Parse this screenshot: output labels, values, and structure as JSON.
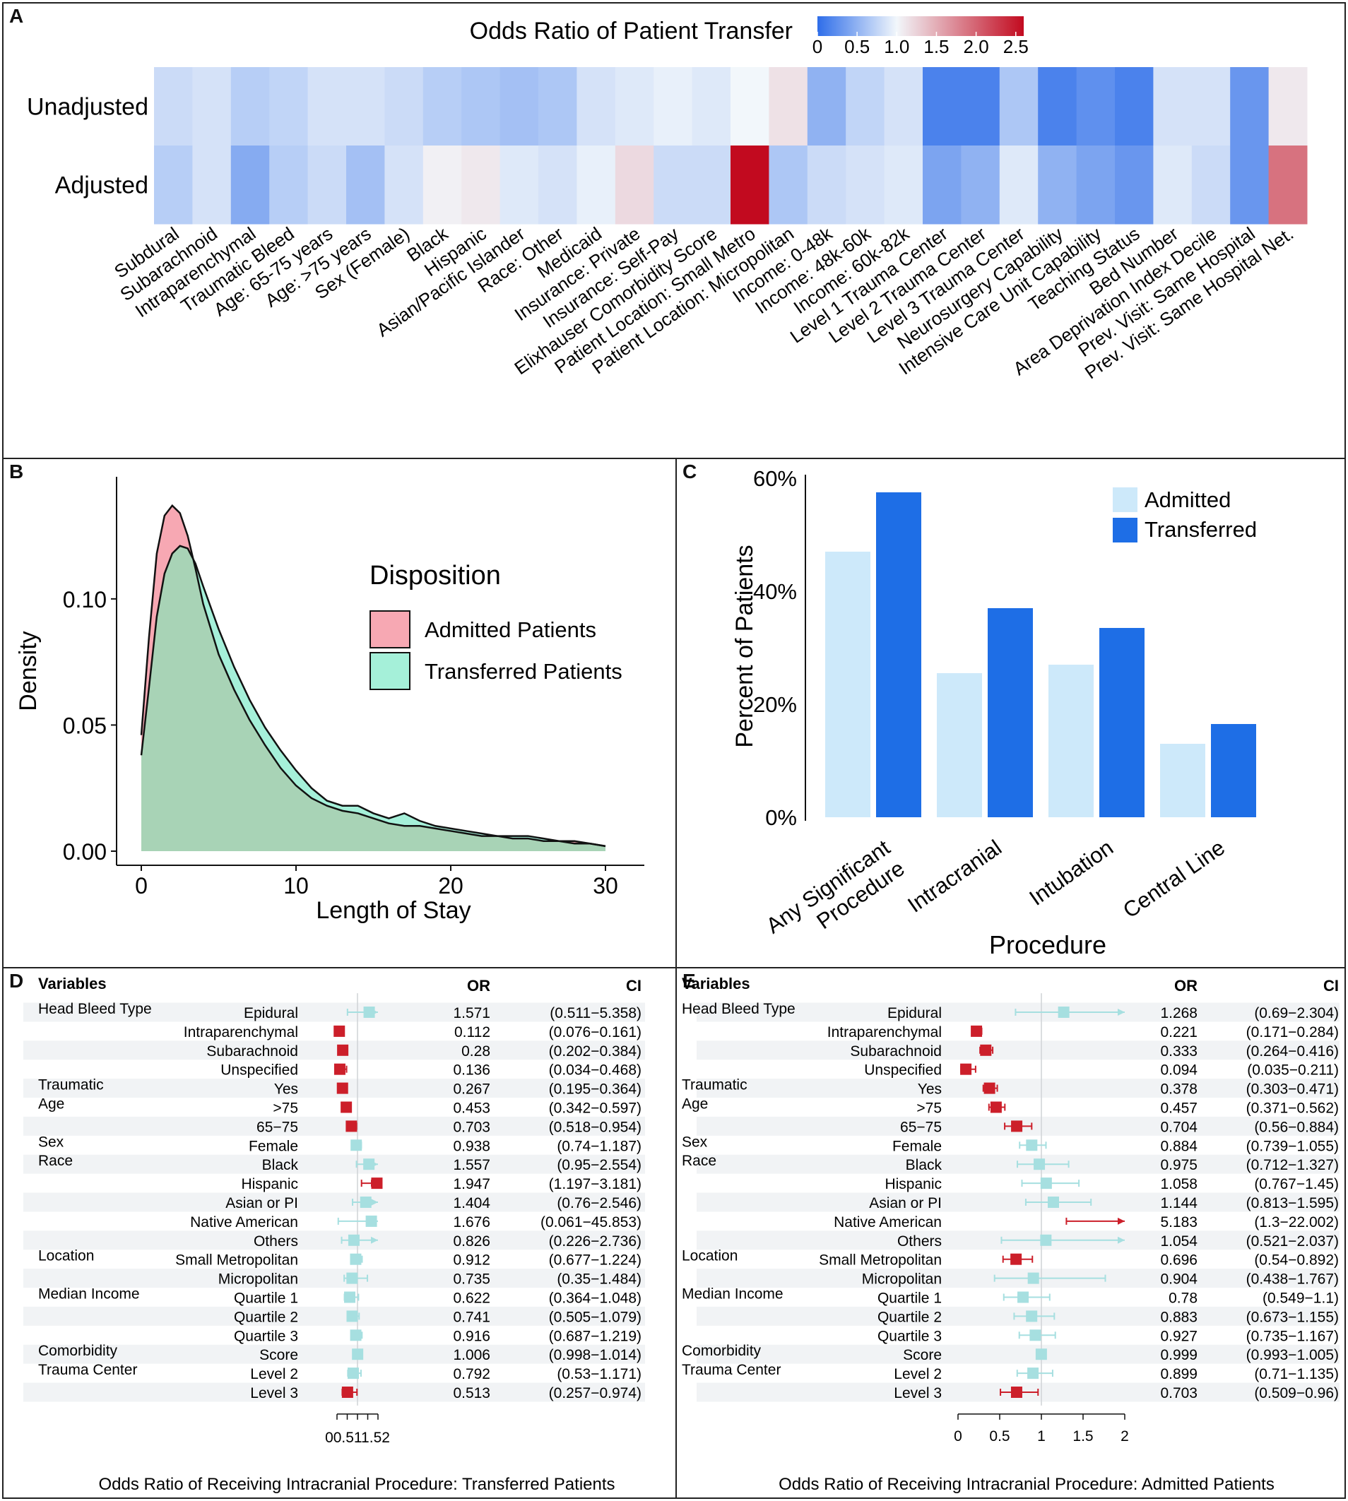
{
  "panels": {
    "a": "A",
    "b": "B",
    "c": "C",
    "d": "D",
    "e": "E"
  },
  "colors": {
    "heat_low": "#2e6de9",
    "heat_mid": "#f2f7fb",
    "heat_high": "#c20a1f",
    "admitted_density": "#f7a8b3",
    "transferred_density": "#a5f0d9",
    "overlap_density": "#a8d3b6",
    "bar_admitted": "#cde9fa",
    "bar_transferred": "#1e6ee6",
    "forest_sig": "#cc1f2a",
    "forest_ns": "#a6dfe0"
  },
  "chart_data": [
    {
      "type": "heatmap",
      "title": "Odds Ratio of Patient Transfer",
      "colorbar_ticks": [
        "0",
        "0.5",
        "1.0",
        "1.5",
        "2.0",
        "2.5"
      ],
      "colorbar_range": [
        0,
        2.6
      ],
      "rows": [
        "Unadjusted",
        "Adjusted"
      ],
      "columns": [
        "Subdural",
        "Subarachnoid",
        "Intraparenchymal",
        "Traumatic Bleed",
        "Age: 65-75 years",
        "Age: >75 years",
        "Sex (Female)",
        "Black",
        "Hispanic",
        "Asian/Pacific Islander",
        "Race: Other",
        "Medicaid",
        "Insurance: Private",
        "Insurance: Self-Pay",
        "Elixhauser Comorbidity Score",
        "Patient Location: Small Metro",
        "Patient Location: Micropolitan",
        "Income: 0-48k",
        "Income: 48k-60k",
        "Income: 60k-82k",
        "Level 1 Trauma Center",
        "Level 2 Trauma Center",
        "Level 3 Trauma Center",
        "Neurosurgery Capability",
        "Intensive Care Unit Capability",
        "Teaching Status",
        "Bed Number",
        "Area Deprivation Index Decile",
        "Prev. Visit: Same Hospital",
        "Prev. Visit: Same Hospital Net."
      ],
      "values": [
        [
          0.8,
          0.85,
          0.7,
          0.75,
          0.85,
          0.85,
          0.8,
          0.7,
          0.65,
          0.6,
          0.65,
          0.85,
          0.9,
          0.95,
          0.9,
          1.0,
          1.15,
          0.5,
          0.75,
          0.85,
          0.15,
          0.15,
          0.65,
          0.15,
          0.25,
          0.15,
          0.85,
          0.85,
          0.3,
          1.1
        ],
        [
          0.7,
          0.85,
          0.45,
          0.7,
          0.8,
          0.6,
          0.85,
          1.05,
          1.1,
          0.9,
          0.85,
          0.95,
          1.2,
          0.8,
          0.8,
          2.6,
          0.65,
          0.8,
          0.85,
          0.9,
          0.4,
          0.5,
          0.9,
          0.5,
          0.4,
          0.3,
          0.9,
          0.8,
          0.3,
          1.9
        ]
      ]
    },
    {
      "type": "area",
      "xlabel": "Length of Stay",
      "ylabel": "Density",
      "xlim": [
        0,
        30
      ],
      "ylim": [
        0,
        0.14
      ],
      "xticks": [
        "0",
        "10",
        "20",
        "30"
      ],
      "yticks": [
        "0.00",
        "0.05",
        "0.10"
      ],
      "legend_title": "Disposition",
      "legend_position": "top-right",
      "series": [
        {
          "name": "Admitted Patients",
          "x": [
            0,
            0.5,
            1,
            1.5,
            2,
            2.5,
            3,
            3.5,
            4,
            5,
            6,
            7,
            8,
            9,
            10,
            11,
            12,
            13,
            14,
            15,
            16,
            17,
            18,
            19,
            20,
            21,
            22,
            23,
            24,
            25,
            26,
            27,
            28,
            29,
            30
          ],
          "y": [
            0.046,
            0.085,
            0.118,
            0.133,
            0.137,
            0.134,
            0.125,
            0.112,
            0.098,
            0.078,
            0.064,
            0.052,
            0.042,
            0.033,
            0.026,
            0.021,
            0.018,
            0.016,
            0.015,
            0.013,
            0.011,
            0.01,
            0.01,
            0.009,
            0.008,
            0.007,
            0.006,
            0.006,
            0.005,
            0.005,
            0.004,
            0.004,
            0.004,
            0.003,
            0.002
          ]
        },
        {
          "name": "Transferred Patients",
          "x": [
            0,
            0.5,
            1,
            1.5,
            2,
            2.5,
            3,
            3.5,
            4,
            5,
            6,
            7,
            8,
            9,
            10,
            11,
            12,
            13,
            14,
            15,
            16,
            17,
            18,
            19,
            20,
            21,
            22,
            23,
            24,
            25,
            26,
            27,
            28,
            29,
            30
          ],
          "y": [
            0.038,
            0.065,
            0.093,
            0.11,
            0.118,
            0.121,
            0.12,
            0.114,
            0.105,
            0.088,
            0.073,
            0.06,
            0.049,
            0.04,
            0.032,
            0.025,
            0.02,
            0.018,
            0.018,
            0.015,
            0.013,
            0.015,
            0.012,
            0.01,
            0.009,
            0.008,
            0.007,
            0.006,
            0.006,
            0.006,
            0.005,
            0.004,
            0.003,
            0.003,
            0.002
          ]
        }
      ]
    },
    {
      "type": "bar",
      "xlabel": "Procedure",
      "ylabel": "Percent of  Patients",
      "ylim": [
        0,
        60
      ],
      "yticks": [
        "0%",
        "20%",
        "40%",
        "60%"
      ],
      "categories": [
        "Any Significant\nProcedure",
        "Intracranial",
        "Intubation",
        "Central Line"
      ],
      "series": [
        {
          "name": "Admitted",
          "values": [
            47,
            25.5,
            27,
            13
          ]
        },
        {
          "name": "Transferred",
          "values": [
            57.5,
            37,
            33.5,
            16.5
          ]
        }
      ],
      "legend_position": "top-right"
    },
    {
      "type": "forest",
      "title": "Odds Ratio of Receiving Intracranial Procedure: Transferred Patients",
      "headers": {
        "variables": "Variables",
        "or": "OR",
        "ci": "CI"
      },
      "xlim": [
        0,
        2
      ],
      "xtick_text": "00.511.52",
      "rows": [
        {
          "group": "Head Bleed Type",
          "label": "Epidural",
          "or": 1.571,
          "lo": 0.511,
          "hi": 5.358,
          "or_text": "1.571",
          "ci_text": "(0.511−5.358)",
          "sig": false
        },
        {
          "group": "",
          "label": "Intraparenchymal",
          "or": 0.112,
          "lo": 0.076,
          "hi": 0.161,
          "or_text": "0.112",
          "ci_text": "(0.076−0.161)",
          "sig": true
        },
        {
          "group": "",
          "label": "Subarachnoid",
          "or": 0.28,
          "lo": 0.202,
          "hi": 0.384,
          "or_text": "0.28",
          "ci_text": "(0.202−0.384)",
          "sig": true
        },
        {
          "group": "",
          "label": "Unspecified",
          "or": 0.136,
          "lo": 0.034,
          "hi": 0.468,
          "or_text": "0.136",
          "ci_text": "(0.034−0.468)",
          "sig": true
        },
        {
          "group": "Traumatic",
          "label": "Yes",
          "or": 0.267,
          "lo": 0.195,
          "hi": 0.364,
          "or_text": "0.267",
          "ci_text": "(0.195−0.364)",
          "sig": true
        },
        {
          "group": "Age",
          "label": ">75",
          "or": 0.453,
          "lo": 0.342,
          "hi": 0.597,
          "or_text": "0.453",
          "ci_text": "(0.342−0.597)",
          "sig": true
        },
        {
          "group": "",
          "label": "65−75",
          "or": 0.703,
          "lo": 0.518,
          "hi": 0.954,
          "or_text": "0.703",
          "ci_text": "(0.518−0.954)",
          "sig": true
        },
        {
          "group": "Sex",
          "label": "Female",
          "or": 0.938,
          "lo": 0.74,
          "hi": 1.187,
          "or_text": "0.938",
          "ci_text": "(0.74−1.187)",
          "sig": false
        },
        {
          "group": "Race",
          "label": "Black",
          "or": 1.557,
          "lo": 0.95,
          "hi": 2.554,
          "or_text": "1.557",
          "ci_text": "(0.95−2.554)",
          "sig": false
        },
        {
          "group": "",
          "label": "Hispanic",
          "or": 1.947,
          "lo": 1.197,
          "hi": 3.181,
          "or_text": "1.947",
          "ci_text": "(1.197−3.181)",
          "sig": true
        },
        {
          "group": "",
          "label": "Asian or PI",
          "or": 1.404,
          "lo": 0.76,
          "hi": 2.546,
          "or_text": "1.404",
          "ci_text": "(0.76−2.546)",
          "sig": false
        },
        {
          "group": "",
          "label": "Native American",
          "or": 1.676,
          "lo": 0.061,
          "hi": 45.853,
          "or_text": "1.676",
          "ci_text": "(0.061−45.853)",
          "sig": false
        },
        {
          "group": "",
          "label": "Others",
          "or": 0.826,
          "lo": 0.226,
          "hi": 2.736,
          "or_text": "0.826",
          "ci_text": "(0.226−2.736)",
          "sig": false
        },
        {
          "group": "Location",
          "label": "Small Metropolitan",
          "or": 0.912,
          "lo": 0.677,
          "hi": 1.224,
          "or_text": "0.912",
          "ci_text": "(0.677−1.224)",
          "sig": false
        },
        {
          "group": "",
          "label": "Micropolitan",
          "or": 0.735,
          "lo": 0.35,
          "hi": 1.484,
          "or_text": "0.735",
          "ci_text": "(0.35−1.484)",
          "sig": false
        },
        {
          "group": "Median Income",
          "label": "Quartile 1",
          "or": 0.622,
          "lo": 0.364,
          "hi": 1.048,
          "or_text": "0.622",
          "ci_text": "(0.364−1.048)",
          "sig": false
        },
        {
          "group": "",
          "label": "Quartile 2",
          "or": 0.741,
          "lo": 0.505,
          "hi": 1.079,
          "or_text": "0.741",
          "ci_text": "(0.505−1.079)",
          "sig": false
        },
        {
          "group": "",
          "label": "Quartile 3",
          "or": 0.916,
          "lo": 0.687,
          "hi": 1.219,
          "or_text": "0.916",
          "ci_text": "(0.687−1.219)",
          "sig": false
        },
        {
          "group": "Comorbidity",
          "label": "Score",
          "or": 1.006,
          "lo": 0.998,
          "hi": 1.014,
          "or_text": "1.006",
          "ci_text": "(0.998−1.014)",
          "sig": false
        },
        {
          "group": "Trauma Center",
          "label": "Level 2",
          "or": 0.792,
          "lo": 0.53,
          "hi": 1.171,
          "or_text": "0.792",
          "ci_text": "(0.53−1.171)",
          "sig": false
        },
        {
          "group": "",
          "label": "Level 3",
          "or": 0.513,
          "lo": 0.257,
          "hi": 0.974,
          "or_text": "0.513",
          "ci_text": "(0.257−0.974)",
          "sig": true
        }
      ]
    },
    {
      "type": "forest",
      "title": "Odds Ratio of Receiving Intracranial Procedure: Admitted Patients",
      "headers": {
        "variables": "Variables",
        "or": "OR",
        "ci": "CI"
      },
      "xlim": [
        0,
        2
      ],
      "xticks": [
        "0",
        "0.5",
        "1",
        "1.5",
        "2"
      ],
      "rows": [
        {
          "group": "Head Bleed Type",
          "label": "Epidural",
          "or": 1.268,
          "lo": 0.69,
          "hi": 2.304,
          "or_text": "1.268",
          "ci_text": "(0.69−2.304)",
          "sig": false
        },
        {
          "group": "",
          "label": "Intraparenchymal",
          "or": 0.221,
          "lo": 0.171,
          "hi": 0.284,
          "or_text": "0.221",
          "ci_text": "(0.171−0.284)",
          "sig": true
        },
        {
          "group": "",
          "label": "Subarachnoid",
          "or": 0.333,
          "lo": 0.264,
          "hi": 0.416,
          "or_text": "0.333",
          "ci_text": "(0.264−0.416)",
          "sig": true
        },
        {
          "group": "",
          "label": "Unspecified",
          "or": 0.094,
          "lo": 0.035,
          "hi": 0.211,
          "or_text": "0.094",
          "ci_text": "(0.035−0.211)",
          "sig": true
        },
        {
          "group": "Traumatic",
          "label": "Yes",
          "or": 0.378,
          "lo": 0.303,
          "hi": 0.471,
          "or_text": "0.378",
          "ci_text": "(0.303−0.471)",
          "sig": true
        },
        {
          "group": "Age",
          "label": ">75",
          "or": 0.457,
          "lo": 0.371,
          "hi": 0.562,
          "or_text": "0.457",
          "ci_text": "(0.371−0.562)",
          "sig": true
        },
        {
          "group": "",
          "label": "65−75",
          "or": 0.704,
          "lo": 0.56,
          "hi": 0.884,
          "or_text": "0.704",
          "ci_text": "(0.56−0.884)",
          "sig": true
        },
        {
          "group": "Sex",
          "label": "Female",
          "or": 0.884,
          "lo": 0.739,
          "hi": 1.055,
          "or_text": "0.884",
          "ci_text": "(0.739−1.055)",
          "sig": false
        },
        {
          "group": "Race",
          "label": "Black",
          "or": 0.975,
          "lo": 0.712,
          "hi": 1.327,
          "or_text": "0.975",
          "ci_text": "(0.712−1.327)",
          "sig": false
        },
        {
          "group": "",
          "label": "Hispanic",
          "or": 1.058,
          "lo": 0.767,
          "hi": 1.45,
          "or_text": "1.058",
          "ci_text": "(0.767−1.45)",
          "sig": false
        },
        {
          "group": "",
          "label": "Asian or PI",
          "or": 1.144,
          "lo": 0.813,
          "hi": 1.595,
          "or_text": "1.144",
          "ci_text": "(0.813−1.595)",
          "sig": false
        },
        {
          "group": "",
          "label": "Native American",
          "or": 5.183,
          "lo": 1.3,
          "hi": 22.002,
          "or_text": "5.183",
          "ci_text": "(1.3−22.002)",
          "sig": true
        },
        {
          "group": "",
          "label": "Others",
          "or": 1.054,
          "lo": 0.521,
          "hi": 2.037,
          "or_text": "1.054",
          "ci_text": "(0.521−2.037)",
          "sig": false
        },
        {
          "group": "Location",
          "label": "Small Metropolitan",
          "or": 0.696,
          "lo": 0.54,
          "hi": 0.892,
          "or_text": "0.696",
          "ci_text": "(0.54−0.892)",
          "sig": true
        },
        {
          "group": "",
          "label": "Micropolitan",
          "or": 0.904,
          "lo": 0.438,
          "hi": 1.767,
          "or_text": "0.904",
          "ci_text": "(0.438−1.767)",
          "sig": false
        },
        {
          "group": "Median Income",
          "label": "Quartile 1",
          "or": 0.78,
          "lo": 0.549,
          "hi": 1.1,
          "or_text": "0.78",
          "ci_text": "(0.549−1.1)",
          "sig": false
        },
        {
          "group": "",
          "label": "Quartile 2",
          "or": 0.883,
          "lo": 0.673,
          "hi": 1.155,
          "or_text": "0.883",
          "ci_text": "(0.673−1.155)",
          "sig": false
        },
        {
          "group": "",
          "label": "Quartile 3",
          "or": 0.927,
          "lo": 0.735,
          "hi": 1.167,
          "or_text": "0.927",
          "ci_text": "(0.735−1.167)",
          "sig": false
        },
        {
          "group": "Comorbidity",
          "label": "Score",
          "or": 0.999,
          "lo": 0.993,
          "hi": 1.005,
          "or_text": "0.999",
          "ci_text": "(0.993−1.005)",
          "sig": false
        },
        {
          "group": "Trauma Center",
          "label": "Level 2",
          "or": 0.899,
          "lo": 0.71,
          "hi": 1.135,
          "or_text": "0.899",
          "ci_text": "(0.71−1.135)",
          "sig": false
        },
        {
          "group": "",
          "label": "Level 3",
          "or": 0.703,
          "lo": 0.509,
          "hi": 0.96,
          "or_text": "0.703",
          "ci_text": "(0.509−0.96)",
          "sig": true
        }
      ]
    }
  ]
}
